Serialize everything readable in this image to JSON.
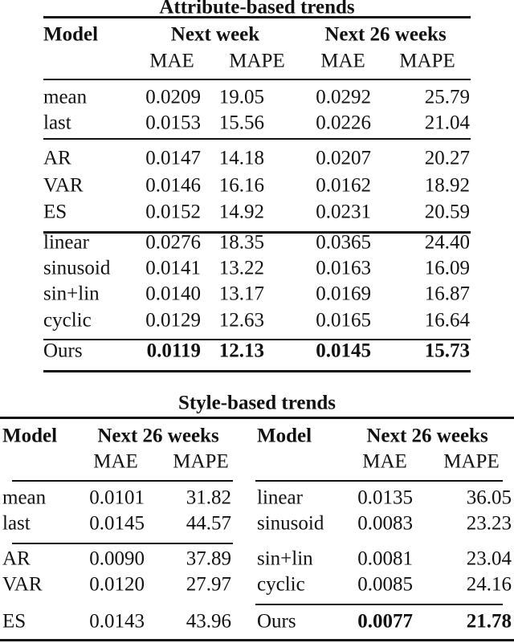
{
  "attribute_table": {
    "title": "Attribute-based trends",
    "header": {
      "model": "Model",
      "group1": "Next week",
      "group2": "Next 26 weeks",
      "sub": [
        "MAE",
        "MAPE",
        "MAE",
        "MAPE"
      ]
    },
    "rows": [
      {
        "model": "mean",
        "values": [
          "0.0209",
          "19.05",
          "0.0292",
          "25.79"
        ]
      },
      {
        "model": "last",
        "values": [
          "0.0153",
          "15.56",
          "0.0226",
          "21.04"
        ]
      },
      {
        "model": "AR",
        "values": [
          "0.0147",
          "14.18",
          "0.0207",
          "20.27"
        ]
      },
      {
        "model": "VAR",
        "values": [
          "0.0146",
          "16.16",
          "0.0162",
          "18.92"
        ]
      },
      {
        "model": "ES",
        "values": [
          "0.0152",
          "14.92",
          "0.0231",
          "20.59"
        ]
      },
      {
        "model": "linear",
        "values": [
          "0.0276",
          "18.35",
          "0.0365",
          "24.40"
        ]
      },
      {
        "model": "sinusoid",
        "values": [
          "0.0141",
          "13.22",
          "0.0163",
          "16.09"
        ]
      },
      {
        "model": "sin+lin",
        "values": [
          "0.0140",
          "13.17",
          "0.0169",
          "16.87"
        ]
      },
      {
        "model": "cyclic",
        "values": [
          "0.0129",
          "12.63",
          "0.0165",
          "16.64"
        ]
      },
      {
        "model": "Ours",
        "values": [
          "0.0119",
          "12.13",
          "0.0145",
          "15.73"
        ],
        "bold_values": true
      }
    ]
  },
  "style_table": {
    "title": "Style-based trends",
    "left": {
      "header": {
        "model": "Model",
        "group": "Next 26 weeks",
        "sub": [
          "MAE",
          "MAPE"
        ]
      },
      "rows": [
        {
          "model": "mean",
          "values": [
            "0.0101",
            "31.82"
          ]
        },
        {
          "model": "last",
          "values": [
            "0.0145",
            "44.57"
          ]
        },
        {
          "model": "AR",
          "values": [
            "0.0090",
            "37.89"
          ]
        },
        {
          "model": "VAR",
          "values": [
            "0.0120",
            "27.97"
          ]
        },
        {
          "model": "ES",
          "values": [
            "0.0143",
            "43.96"
          ]
        }
      ]
    },
    "right": {
      "header": {
        "model": "Model",
        "group": "Next 26 weeks",
        "sub": [
          "MAE",
          "MAPE"
        ]
      },
      "rows": [
        {
          "model": "linear",
          "values": [
            "0.0135",
            "36.05"
          ]
        },
        {
          "model": "sinusoid",
          "values": [
            "0.0083",
            "23.23"
          ]
        },
        {
          "model": "sin+lin",
          "values": [
            "0.0081",
            "23.04"
          ]
        },
        {
          "model": "cyclic",
          "values": [
            "0.0085",
            "24.16"
          ]
        },
        {
          "model": "Ours",
          "values": [
            "0.0077",
            "21.78"
          ],
          "bold_values": true
        }
      ]
    }
  }
}
